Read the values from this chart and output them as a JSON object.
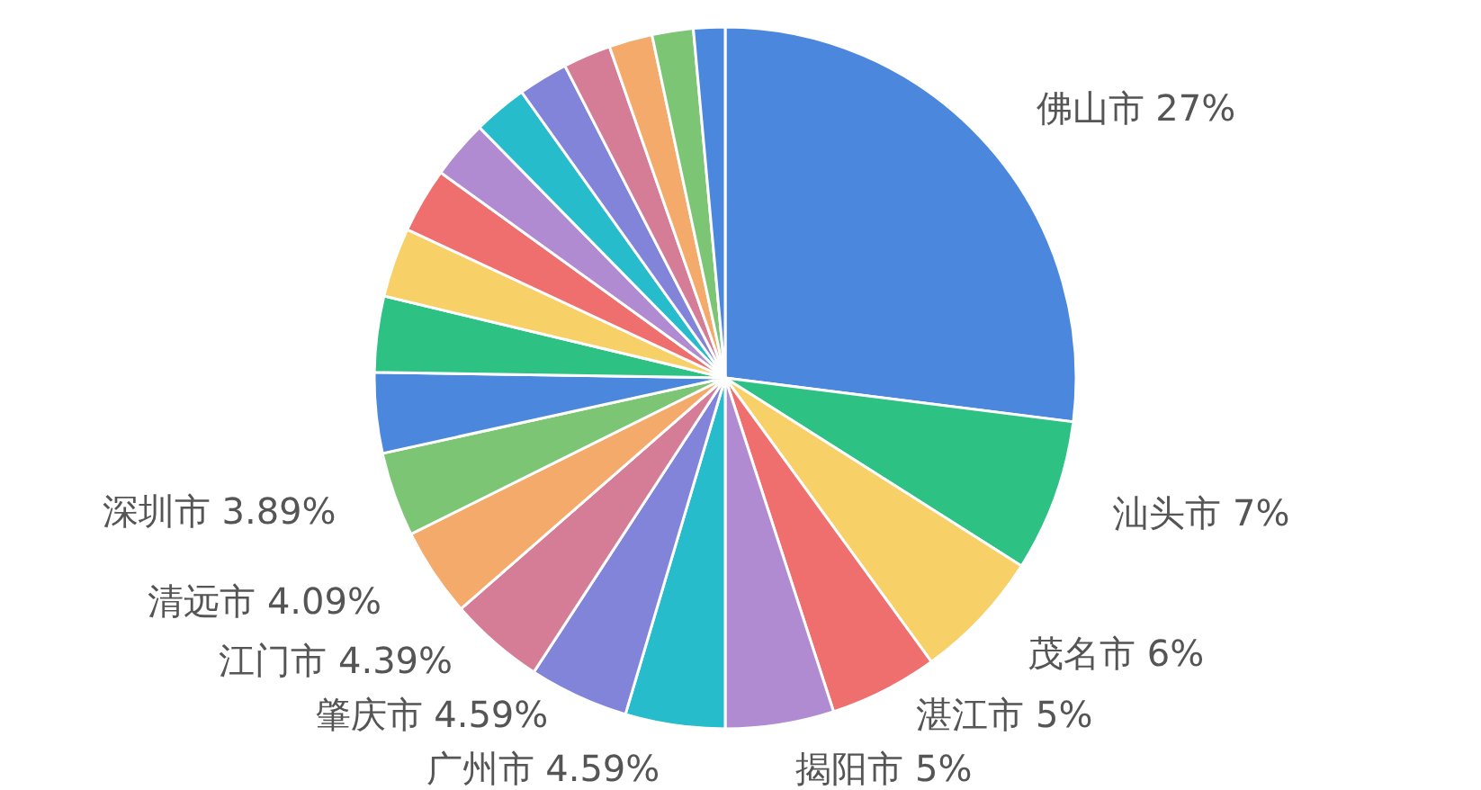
{
  "chart_data": {
    "type": "pie",
    "categories": [
      "佛山市",
      "汕头市",
      "茂名市",
      "湛江市",
      "揭阳市",
      "广州市",
      "肇庆市",
      "江门市",
      "清远市",
      "深圳市",
      null,
      null,
      null,
      null,
      null,
      null,
      null,
      null,
      null,
      null,
      null
    ],
    "values": [
      27,
      7,
      6,
      5,
      5,
      4.59,
      4.59,
      4.39,
      4.09,
      3.89,
      3.7,
      3.5,
      3.2,
      3.0,
      2.7,
      2.5,
      2.3,
      2.2,
      2.0,
      1.9,
      1.45
    ],
    "value_labels": [
      "27%",
      "7%",
      "6%",
      "5%",
      "5%",
      "4.59%",
      "4.59%",
      "4.39%",
      "4.09%",
      "3.89%",
      null,
      null,
      null,
      null,
      null,
      null,
      null,
      null,
      null,
      null,
      null
    ],
    "colors": [
      "#4a87dd",
      "#2dc184",
      "#f7d068",
      "#ef6e6e",
      "#b08bd1",
      "#26bccb",
      "#8184d8",
      "#d57c97",
      "#f4aa6a",
      "#7cc575",
      "#4a87dd",
      "#2dc184",
      "#f7d068",
      "#ef6e6e",
      "#b08bd1",
      "#26bccb",
      "#8184d8",
      "#d57c97",
      "#f4aa6a",
      "#7cc575",
      "#4a87dd"
    ]
  }
}
